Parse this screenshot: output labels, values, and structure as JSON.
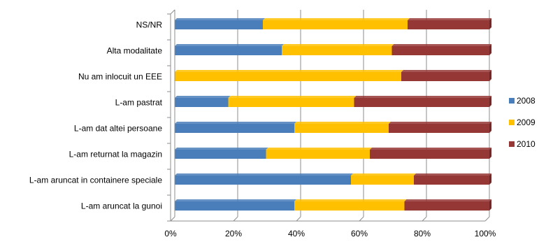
{
  "chart_data": {
    "type": "bar",
    "orientation": "horizontal",
    "stacked": "percent",
    "categories": [
      "L-am aruncat la gunoi",
      "L-am aruncat in containere speciale",
      "L-am returnat la magazin",
      "L-am dat altei persoane",
      "L-am pastrat",
      "Nu am inlocuit un EEE",
      "Alta modalitate",
      "NS/NR"
    ],
    "series": [
      {
        "name": "2008",
        "color": "#4A7EBB",
        "values": [
          38,
          56,
          29,
          38,
          17,
          0,
          34,
          28
        ]
      },
      {
        "name": "2009",
        "color": "#FFC000",
        "values": [
          35,
          20,
          33,
          30,
          40,
          72,
          35,
          46
        ]
      },
      {
        "name": "2010",
        "color": "#953735",
        "values": [
          27,
          24,
          38,
          32,
          43,
          28,
          31,
          26
        ]
      }
    ],
    "x_ticks": [
      "0%",
      "20%",
      "40%",
      "60%",
      "80%",
      "100%"
    ],
    "xlim": [
      0,
      100
    ],
    "grid": true,
    "legend_position": "right"
  }
}
